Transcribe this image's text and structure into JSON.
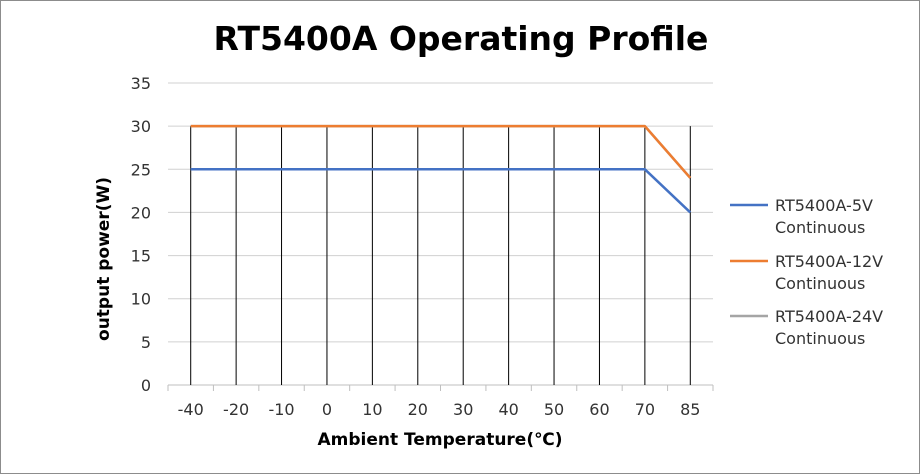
{
  "chart_data": {
    "type": "line",
    "title": "RT5400A Operating Profile",
    "xlabel": "Ambient Temperature(℃)",
    "ylabel": "output power(W)",
    "categories": [
      "-40",
      "-20",
      "-10",
      "0",
      "10",
      "20",
      "30",
      "40",
      "50",
      "60",
      "70",
      "85"
    ],
    "yticks": [
      "0",
      "5",
      "10",
      "15",
      "20",
      "25",
      "30",
      "35"
    ],
    "ylim": [
      0,
      35
    ],
    "grid": "horizontal and vertical",
    "legend_position": "right",
    "series": [
      {
        "name": "RT5400A-5V Continuous",
        "name_lines": [
          "RT5400A-5V",
          "Continuous"
        ],
        "color": "#4472c4",
        "values": [
          25,
          25,
          25,
          25,
          25,
          25,
          25,
          25,
          25,
          25,
          25,
          20
        ]
      },
      {
        "name": "RT5400A-12V Continuous",
        "name_lines": [
          "RT5400A-12V",
          "Continuous"
        ],
        "color": "#ed7d31",
        "values": [
          30,
          30,
          30,
          30,
          30,
          30,
          30,
          30,
          30,
          30,
          30,
          24
        ]
      },
      {
        "name": "RT5400A-24V Continuous",
        "name_lines": [
          "RT5400A-24V",
          "Continuous"
        ],
        "color": "#a5a5a5",
        "values": [
          30,
          30,
          30,
          30,
          30,
          30,
          30,
          30,
          30,
          30,
          30,
          24
        ]
      }
    ]
  }
}
